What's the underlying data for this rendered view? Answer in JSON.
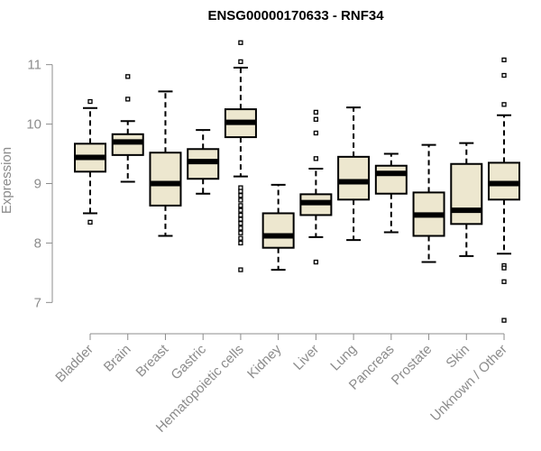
{
  "chart_data": {
    "type": "boxplot",
    "title": "ENSG00000170633 - RNF34",
    "xlabel": "",
    "ylabel": "Expression",
    "ylim": [
      6.55,
      11.45
    ],
    "yticks": [
      7,
      8,
      9,
      10,
      11
    ],
    "grid": false,
    "legend": "none",
    "colors": {
      "box_fill": "#ede7cf",
      "stroke": "#000000",
      "axis": "#8c8c8c"
    },
    "categories": [
      "Bladder",
      "Brain",
      "Breast",
      "Gastric",
      "Hematopoietic cells",
      "Kidney",
      "Liver",
      "Lung",
      "Pancreas",
      "Prostate",
      "Skin",
      "Unknown / Other"
    ],
    "boxes": [
      {
        "q1": 9.2,
        "median": 9.44,
        "q3": 9.67,
        "whisker_low": 8.5,
        "whisker_high": 10.27,
        "outliers": [
          10.38,
          8.35
        ]
      },
      {
        "q1": 9.48,
        "median": 9.7,
        "q3": 9.83,
        "whisker_low": 9.03,
        "whisker_high": 10.05,
        "outliers": [
          10.8,
          10.42
        ]
      },
      {
        "q1": 8.63,
        "median": 9.0,
        "q3": 9.52,
        "whisker_low": 8.12,
        "whisker_high": 10.55,
        "outliers": []
      },
      {
        "q1": 9.08,
        "median": 9.37,
        "q3": 9.58,
        "whisker_low": 8.83,
        "whisker_high": 9.9,
        "outliers": []
      },
      {
        "q1": 9.78,
        "median": 10.03,
        "q3": 10.25,
        "whisker_low": 9.12,
        "whisker_high": 10.95,
        "outliers": [
          11.37,
          11.05,
          8.93,
          8.87,
          8.8,
          8.72,
          8.63,
          8.55,
          8.47,
          8.4,
          8.33,
          8.25,
          8.17,
          8.08,
          8.0,
          7.55
        ]
      },
      {
        "q1": 7.92,
        "median": 8.12,
        "q3": 8.5,
        "whisker_low": 7.55,
        "whisker_high": 8.98,
        "outliers": []
      },
      {
        "q1": 8.47,
        "median": 8.68,
        "q3": 8.82,
        "whisker_low": 8.1,
        "whisker_high": 9.25,
        "outliers": [
          10.2,
          10.08,
          9.85,
          9.42,
          7.68
        ]
      },
      {
        "q1": 8.73,
        "median": 9.03,
        "q3": 9.45,
        "whisker_low": 8.05,
        "whisker_high": 10.28,
        "outliers": []
      },
      {
        "q1": 8.83,
        "median": 9.17,
        "q3": 9.3,
        "whisker_low": 8.18,
        "whisker_high": 9.5,
        "outliers": []
      },
      {
        "q1": 8.12,
        "median": 8.47,
        "q3": 8.85,
        "whisker_low": 7.68,
        "whisker_high": 9.65,
        "outliers": []
      },
      {
        "q1": 8.32,
        "median": 8.55,
        "q3": 9.33,
        "whisker_low": 7.78,
        "whisker_high": 9.68,
        "outliers": []
      },
      {
        "q1": 8.73,
        "median": 9.0,
        "q3": 9.35,
        "whisker_low": 7.82,
        "whisker_high": 10.15,
        "outliers": [
          11.08,
          10.82,
          10.33,
          7.62,
          7.58,
          7.35,
          6.7
        ]
      }
    ]
  }
}
